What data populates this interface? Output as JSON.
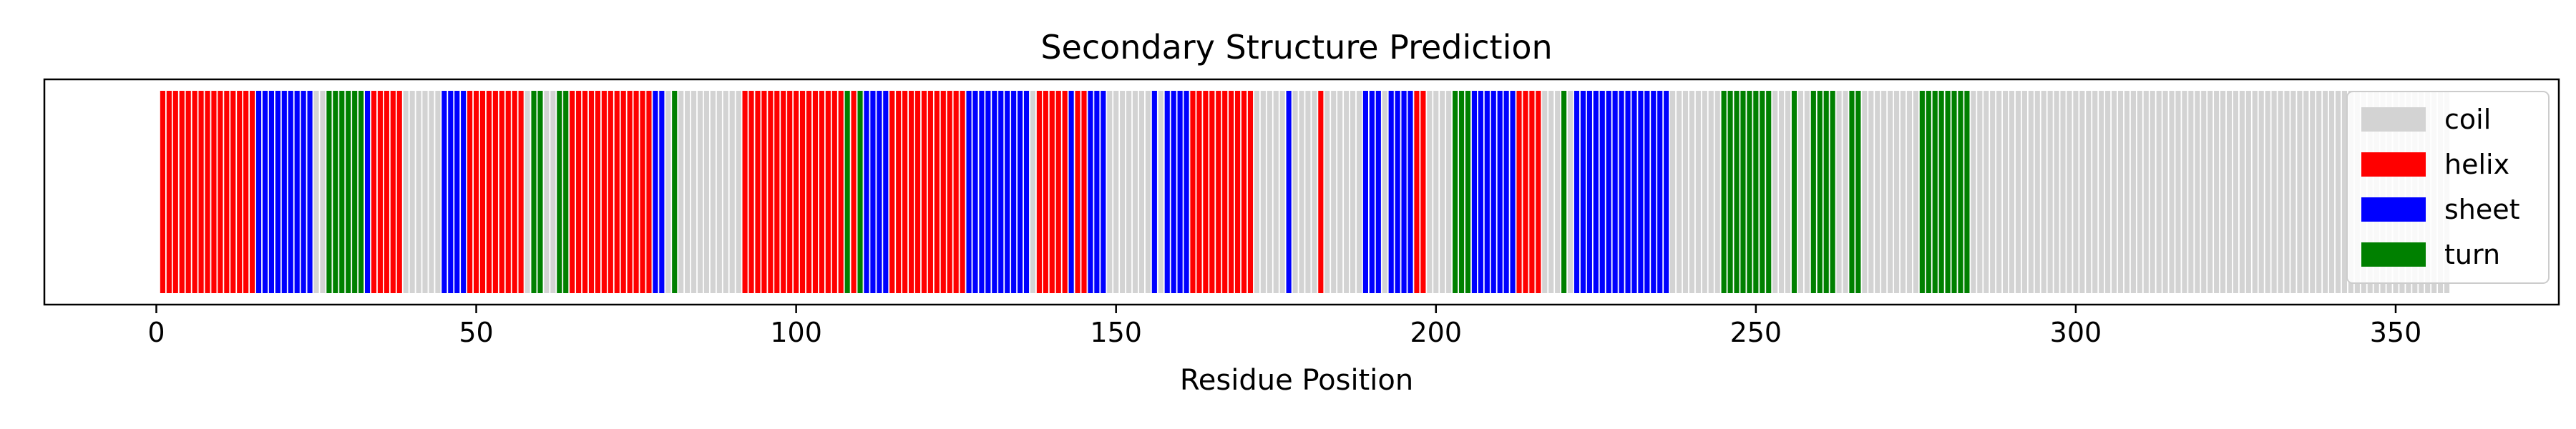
{
  "chart_data": {
    "type": "bar",
    "title": "Secondary Structure Prediction",
    "xlabel": "Residue Position",
    "ylabel": "",
    "xlim": [
      -17.5,
      375.5
    ],
    "x_ticks": [
      0,
      50,
      100,
      150,
      200,
      250,
      300,
      350
    ],
    "legend": [
      "coil",
      "helix",
      "sheet",
      "turn"
    ],
    "legend_position": "upper right",
    "colors": {
      "coil": "#d3d3d3",
      "helix": "#ff0000",
      "sheet": "#0000ff",
      "turn": "#008000"
    },
    "segments": [
      {
        "start": 1,
        "end": 15,
        "type": "helix"
      },
      {
        "start": 16,
        "end": 19,
        "type": "sheet"
      },
      {
        "start": 20,
        "end": 24,
        "type": "sheet"
      },
      {
        "start": 25,
        "end": 26,
        "type": "coil"
      },
      {
        "start": 27,
        "end": 32,
        "type": "turn"
      },
      {
        "start": 33,
        "end": 33,
        "type": "sheet"
      },
      {
        "start": 34,
        "end": 38,
        "type": "helix"
      },
      {
        "start": 39,
        "end": 44,
        "type": "coil"
      },
      {
        "start": 45,
        "end": 48,
        "type": "sheet"
      },
      {
        "start": 49,
        "end": 57,
        "type": "helix"
      },
      {
        "start": 58,
        "end": 58,
        "type": "coil"
      },
      {
        "start": 59,
        "end": 60,
        "type": "turn"
      },
      {
        "start": 61,
        "end": 62,
        "type": "coil"
      },
      {
        "start": 63,
        "end": 64,
        "type": "turn"
      },
      {
        "start": 65,
        "end": 77,
        "type": "helix"
      },
      {
        "start": 78,
        "end": 79,
        "type": "sheet"
      },
      {
        "start": 80,
        "end": 80,
        "type": "coil"
      },
      {
        "start": 81,
        "end": 81,
        "type": "turn"
      },
      {
        "start": 82,
        "end": 91,
        "type": "coil"
      },
      {
        "start": 92,
        "end": 107,
        "type": "helix"
      },
      {
        "start": 108,
        "end": 108,
        "type": "turn"
      },
      {
        "start": 109,
        "end": 109,
        "type": "helix"
      },
      {
        "start": 110,
        "end": 110,
        "type": "turn"
      },
      {
        "start": 111,
        "end": 114,
        "type": "sheet"
      },
      {
        "start": 115,
        "end": 126,
        "type": "helix"
      },
      {
        "start": 127,
        "end": 136,
        "type": "sheet"
      },
      {
        "start": 137,
        "end": 137,
        "type": "coil"
      },
      {
        "start": 138,
        "end": 142,
        "type": "helix"
      },
      {
        "start": 143,
        "end": 143,
        "type": "sheet"
      },
      {
        "start": 144,
        "end": 145,
        "type": "helix"
      },
      {
        "start": 146,
        "end": 148,
        "type": "sheet"
      },
      {
        "start": 149,
        "end": 155,
        "type": "coil"
      },
      {
        "start": 156,
        "end": 156,
        "type": "sheet"
      },
      {
        "start": 157,
        "end": 157,
        "type": "coil"
      },
      {
        "start": 158,
        "end": 161,
        "type": "sheet"
      },
      {
        "start": 162,
        "end": 171,
        "type": "helix"
      },
      {
        "start": 172,
        "end": 176,
        "type": "coil"
      },
      {
        "start": 177,
        "end": 177,
        "type": "sheet"
      },
      {
        "start": 178,
        "end": 181,
        "type": "coil"
      },
      {
        "start": 182,
        "end": 182,
        "type": "helix"
      },
      {
        "start": 183,
        "end": 188,
        "type": "coil"
      },
      {
        "start": 189,
        "end": 191,
        "type": "sheet"
      },
      {
        "start": 192,
        "end": 192,
        "type": "coil"
      },
      {
        "start": 193,
        "end": 196,
        "type": "sheet"
      },
      {
        "start": 197,
        "end": 198,
        "type": "helix"
      },
      {
        "start": 199,
        "end": 202,
        "type": "coil"
      },
      {
        "start": 203,
        "end": 205,
        "type": "turn"
      },
      {
        "start": 206,
        "end": 212,
        "type": "sheet"
      },
      {
        "start": 213,
        "end": 216,
        "type": "helix"
      },
      {
        "start": 217,
        "end": 219,
        "type": "coil"
      },
      {
        "start": 220,
        "end": 220,
        "type": "turn"
      },
      {
        "start": 221,
        "end": 221,
        "type": "coil"
      },
      {
        "start": 222,
        "end": 236,
        "type": "sheet"
      },
      {
        "start": 237,
        "end": 244,
        "type": "coil"
      },
      {
        "start": 245,
        "end": 252,
        "type": "turn"
      },
      {
        "start": 253,
        "end": 255,
        "type": "coil"
      },
      {
        "start": 256,
        "end": 256,
        "type": "turn"
      },
      {
        "start": 257,
        "end": 258,
        "type": "coil"
      },
      {
        "start": 259,
        "end": 262,
        "type": "turn"
      },
      {
        "start": 263,
        "end": 264,
        "type": "coil"
      },
      {
        "start": 265,
        "end": 266,
        "type": "turn"
      },
      {
        "start": 267,
        "end": 275,
        "type": "coil"
      },
      {
        "start": 276,
        "end": 283,
        "type": "turn"
      },
      {
        "start": 284,
        "end": 358,
        "type": "coil"
      }
    ]
  }
}
